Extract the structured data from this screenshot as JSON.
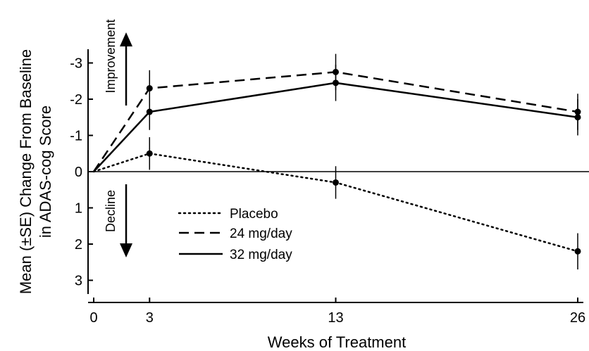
{
  "chart_data": {
    "type": "line",
    "xlabel": "Weeks of Treatment",
    "ylabel_lines": [
      "Mean (±SE) Change From Baseline",
      "in ADAS-cog Score"
    ],
    "x_ticks": [
      0,
      3,
      13,
      26
    ],
    "y_ticks": [
      -3,
      -2,
      -1,
      0,
      1,
      2,
      3
    ],
    "y_tick_labels": [
      "-3",
      "-2",
      "-1",
      "0",
      "1",
      "2",
      "3"
    ],
    "xlim": [
      0,
      26.5
    ],
    "ylim": [
      -3.3,
      3.3
    ],
    "y_inverted": true,
    "zero_line": true,
    "legend_position": "lower-center",
    "annotations": {
      "up": "Improvement",
      "down": "Decline"
    },
    "series": [
      {
        "name": "Placebo",
        "style": "dotted",
        "x": [
          0,
          3,
          13,
          26
        ],
        "y": [
          0,
          -0.5,
          0.3,
          2.2
        ],
        "err": [
          0,
          0.45,
          0.45,
          0.5
        ]
      },
      {
        "name": "24 mg/day",
        "style": "dashed",
        "x": [
          0,
          3,
          13,
          26
        ],
        "y": [
          0,
          -2.3,
          -2.75,
          -1.65
        ],
        "err": [
          0,
          0.5,
          0.5,
          0.5
        ]
      },
      {
        "name": "32 mg/day",
        "style": "solid",
        "x": [
          0,
          3,
          13,
          26
        ],
        "y": [
          0,
          -1.65,
          -2.45,
          -1.5
        ],
        "err": [
          0,
          0.5,
          0.5,
          0.5
        ]
      }
    ]
  },
  "colors": {
    "line": "#000000",
    "background": "#ffffff"
  }
}
